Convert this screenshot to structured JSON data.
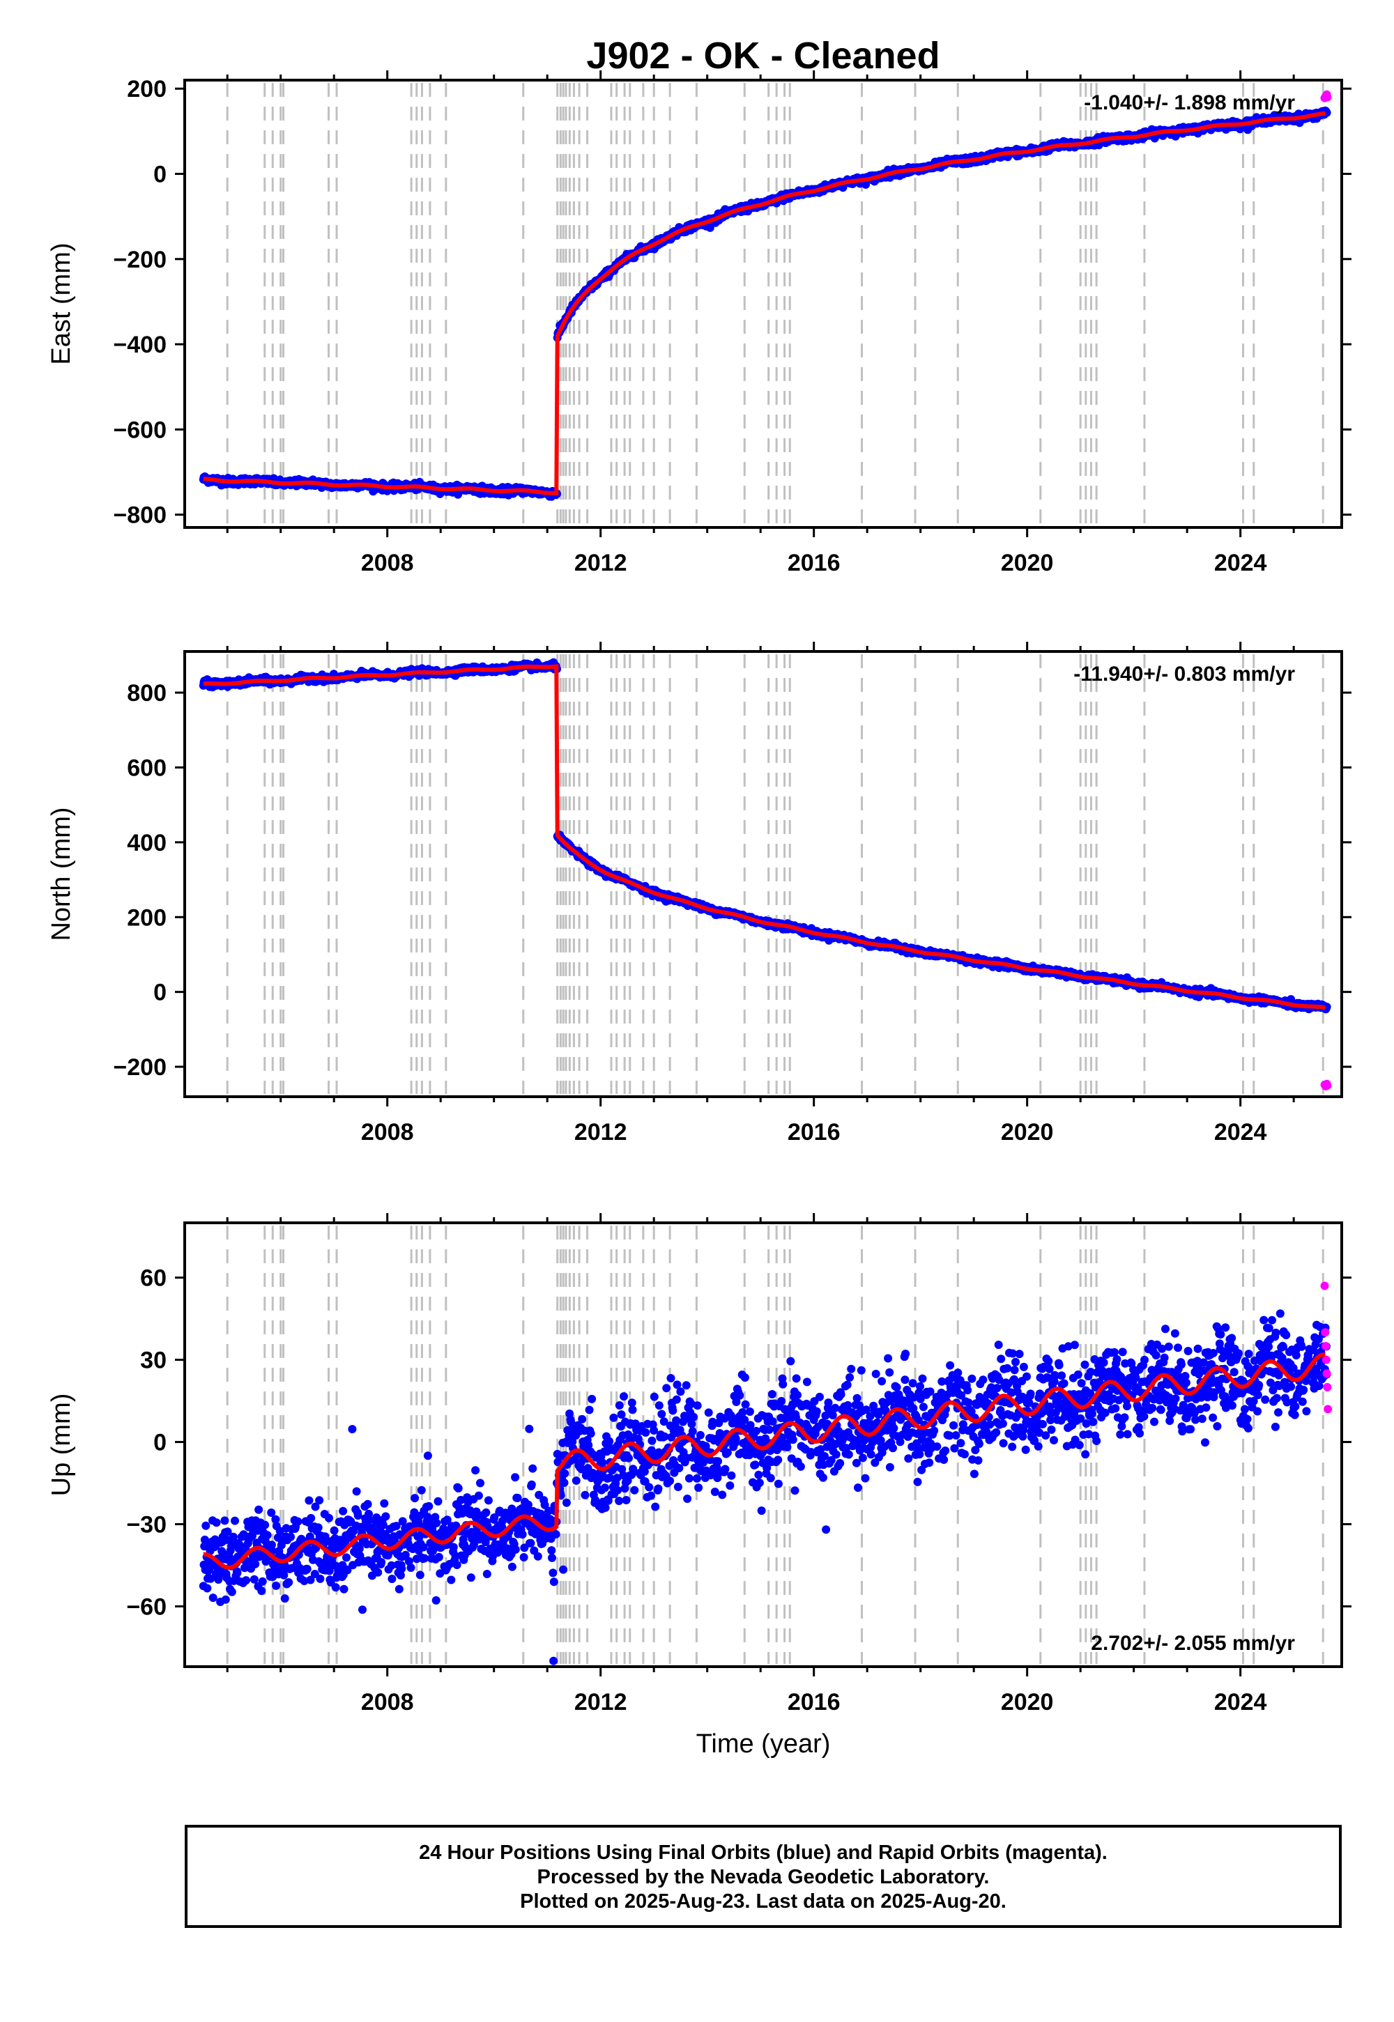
{
  "title": "J902  - OK - Cleaned",
  "x_axis_label": "Time (year)",
  "footer": {
    "line1": "24 Hour Positions Using Final Orbits (blue) and Rapid Orbits (magenta).",
    "line2": "Processed by the Nevada Geodetic Laboratory.",
    "line3": "Plotted on 2025-Aug-23. Last data on 2025-Aug-20."
  },
  "colors": {
    "final_orbits": "#0000ff",
    "rapid_orbits": "#ff00ff",
    "model": "#ff0000",
    "event_lines": "#c0c0c0"
  },
  "chart_data": [
    {
      "type": "scatter",
      "ylabel": "East (mm)",
      "rate_text": "-1.040+/- 1.898 mm/yr",
      "xlim": [
        2004.2,
        2025.9
      ],
      "ylim": [
        -830,
        220
      ],
      "yticks": [
        200,
        0,
        -200,
        -400,
        -600,
        -800
      ],
      "xticks": [
        2008,
        2012,
        2016,
        2020,
        2024
      ],
      "events": [
        2005.0,
        2005.7,
        2005.85,
        2006.0,
        2006.05,
        2006.9,
        2007.05,
        2008.45,
        2008.55,
        2008.65,
        2008.8,
        2009.1,
        2010.55,
        2011.19,
        2011.25,
        2011.3,
        2011.35,
        2011.42,
        2011.5,
        2011.6,
        2011.75,
        2012.2,
        2012.3,
        2012.45,
        2012.55,
        2012.8,
        2013.0,
        2013.3,
        2013.8,
        2014.7,
        2015.15,
        2015.3,
        2015.45,
        2015.55,
        2016.9,
        2017.9,
        2018.7,
        2020.25,
        2021.0,
        2021.1,
        2021.2,
        2021.3,
        2022.2,
        2024.05,
        2024.25,
        2025.55
      ],
      "series": [
        {
          "name": "Final Orbits",
          "segments": [
            {
              "x_start": 2004.55,
              "x_end": 2011.18,
              "a": -718,
              "b": -4.5,
              "c": 0,
              "d": 0,
              "tau": 1,
              "noise": 4,
              "seasonal": 2
            },
            {
              "x_start": 2011.19,
              "x_end": 2025.62,
              "a": -380,
              "b": 3.9,
              "c": 460,
              "d": 0,
              "tau": 0.5,
              "noise": 4,
              "seasonal": 2,
              "log_form": true
            }
          ]
        },
        {
          "name": "Rapid Orbits",
          "points": [
            [
              2025.58,
              178
            ],
            [
              2025.6,
              182
            ],
            [
              2025.62,
              186
            ],
            [
              2025.63,
              180
            ]
          ]
        }
      ]
    },
    {
      "type": "scatter",
      "ylabel": "North (mm)",
      "rate_text": "-11.940+/- 0.803 mm/yr",
      "xlim": [
        2004.2,
        2025.9
      ],
      "ylim": [
        -280,
        910
      ],
      "yticks": [
        800,
        600,
        400,
        200,
        0,
        -200
      ],
      "xticks": [
        2008,
        2012,
        2016,
        2020,
        2024
      ],
      "events": [
        2005.0,
        2005.7,
        2005.85,
        2006.0,
        2006.05,
        2006.9,
        2007.05,
        2008.45,
        2008.55,
        2008.65,
        2008.8,
        2009.1,
        2010.55,
        2011.19,
        2011.25,
        2011.3,
        2011.35,
        2011.42,
        2011.5,
        2011.6,
        2011.75,
        2012.2,
        2012.3,
        2012.45,
        2012.55,
        2012.8,
        2013.0,
        2013.3,
        2013.8,
        2014.7,
        2015.15,
        2015.3,
        2015.45,
        2015.55,
        2016.9,
        2017.9,
        2018.7,
        2020.25,
        2021.0,
        2021.1,
        2021.2,
        2021.3,
        2022.2,
        2024.05,
        2024.25,
        2025.55
      ],
      "series": [
        {
          "name": "Final Orbits",
          "segments": [
            {
              "x_start": 2004.55,
              "x_end": 2011.18,
              "a": 822,
              "b": 7.5,
              "c": 0,
              "d": 0,
              "tau": 1,
              "noise": 4,
              "seasonal": 2
            },
            {
              "x_start": 2011.19,
              "x_end": 2025.62,
              "a": 420,
              "b": -11.9,
              "c": -290,
              "d": 0,
              "tau": 0.5,
              "noise": 4,
              "seasonal": 2,
              "log_form": true
            }
          ]
        },
        {
          "name": "Rapid Orbits",
          "points": [
            [
              2025.58,
              -248
            ],
            [
              2025.6,
              -252
            ],
            [
              2025.62,
              -246
            ],
            [
              2025.63,
              -250
            ]
          ]
        }
      ]
    },
    {
      "type": "scatter",
      "ylabel": "Up (mm)",
      "rate_text": "2.702+/- 2.055 mm/yr",
      "xlim": [
        2004.2,
        2025.9
      ],
      "ylim": [
        -82,
        80
      ],
      "yticks": [
        60,
        30,
        0,
        -30,
        -60
      ],
      "xticks": [
        2008,
        2012,
        2016,
        2020,
        2024
      ],
      "events": [
        2005.0,
        2005.7,
        2005.85,
        2006.0,
        2006.05,
        2006.9,
        2007.05,
        2008.45,
        2008.55,
        2008.65,
        2008.8,
        2009.1,
        2010.55,
        2011.19,
        2011.25,
        2011.3,
        2011.35,
        2011.42,
        2011.5,
        2011.6,
        2011.75,
        2012.2,
        2012.3,
        2012.45,
        2012.55,
        2012.8,
        2013.0,
        2013.3,
        2013.8,
        2014.7,
        2015.15,
        2015.3,
        2015.45,
        2015.55,
        2016.9,
        2017.9,
        2018.7,
        2020.25,
        2021.0,
        2021.1,
        2021.2,
        2021.3,
        2022.2,
        2024.05,
        2024.25,
        2025.55
      ],
      "series": [
        {
          "name": "Final Orbits",
          "segments": [
            {
              "x_start": 2004.55,
              "x_end": 2011.18,
              "a": -44,
              "b": 2.3,
              "c": 0,
              "d": 0,
              "tau": 1,
              "noise": 7,
              "seasonal": 3
            },
            {
              "x_start": 2011.19,
              "x_end": 2025.62,
              "a": -8,
              "b": 2.5,
              "c": 0,
              "d": 0,
              "tau": 1,
              "noise": 8,
              "seasonal": 4
            }
          ]
        },
        {
          "name": "Rapid Orbits",
          "points": [
            [
              2025.58,
              57
            ],
            [
              2025.59,
              40
            ],
            [
              2025.6,
              35
            ],
            [
              2025.61,
              30
            ],
            [
              2025.62,
              25
            ],
            [
              2025.63,
              20
            ],
            [
              2025.64,
              12
            ]
          ]
        }
      ]
    }
  ]
}
